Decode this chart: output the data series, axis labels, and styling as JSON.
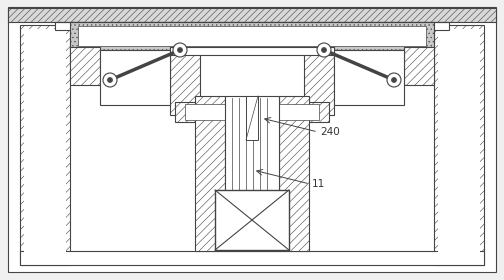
{
  "bg_color": "#f0f0f0",
  "inner_bg": "#ffffff",
  "line_color": "#444444",
  "hatch_color": "#888888",
  "label_240": "240",
  "label_11": "11",
  "figsize": [
    5.04,
    2.8
  ],
  "dpi": 100
}
